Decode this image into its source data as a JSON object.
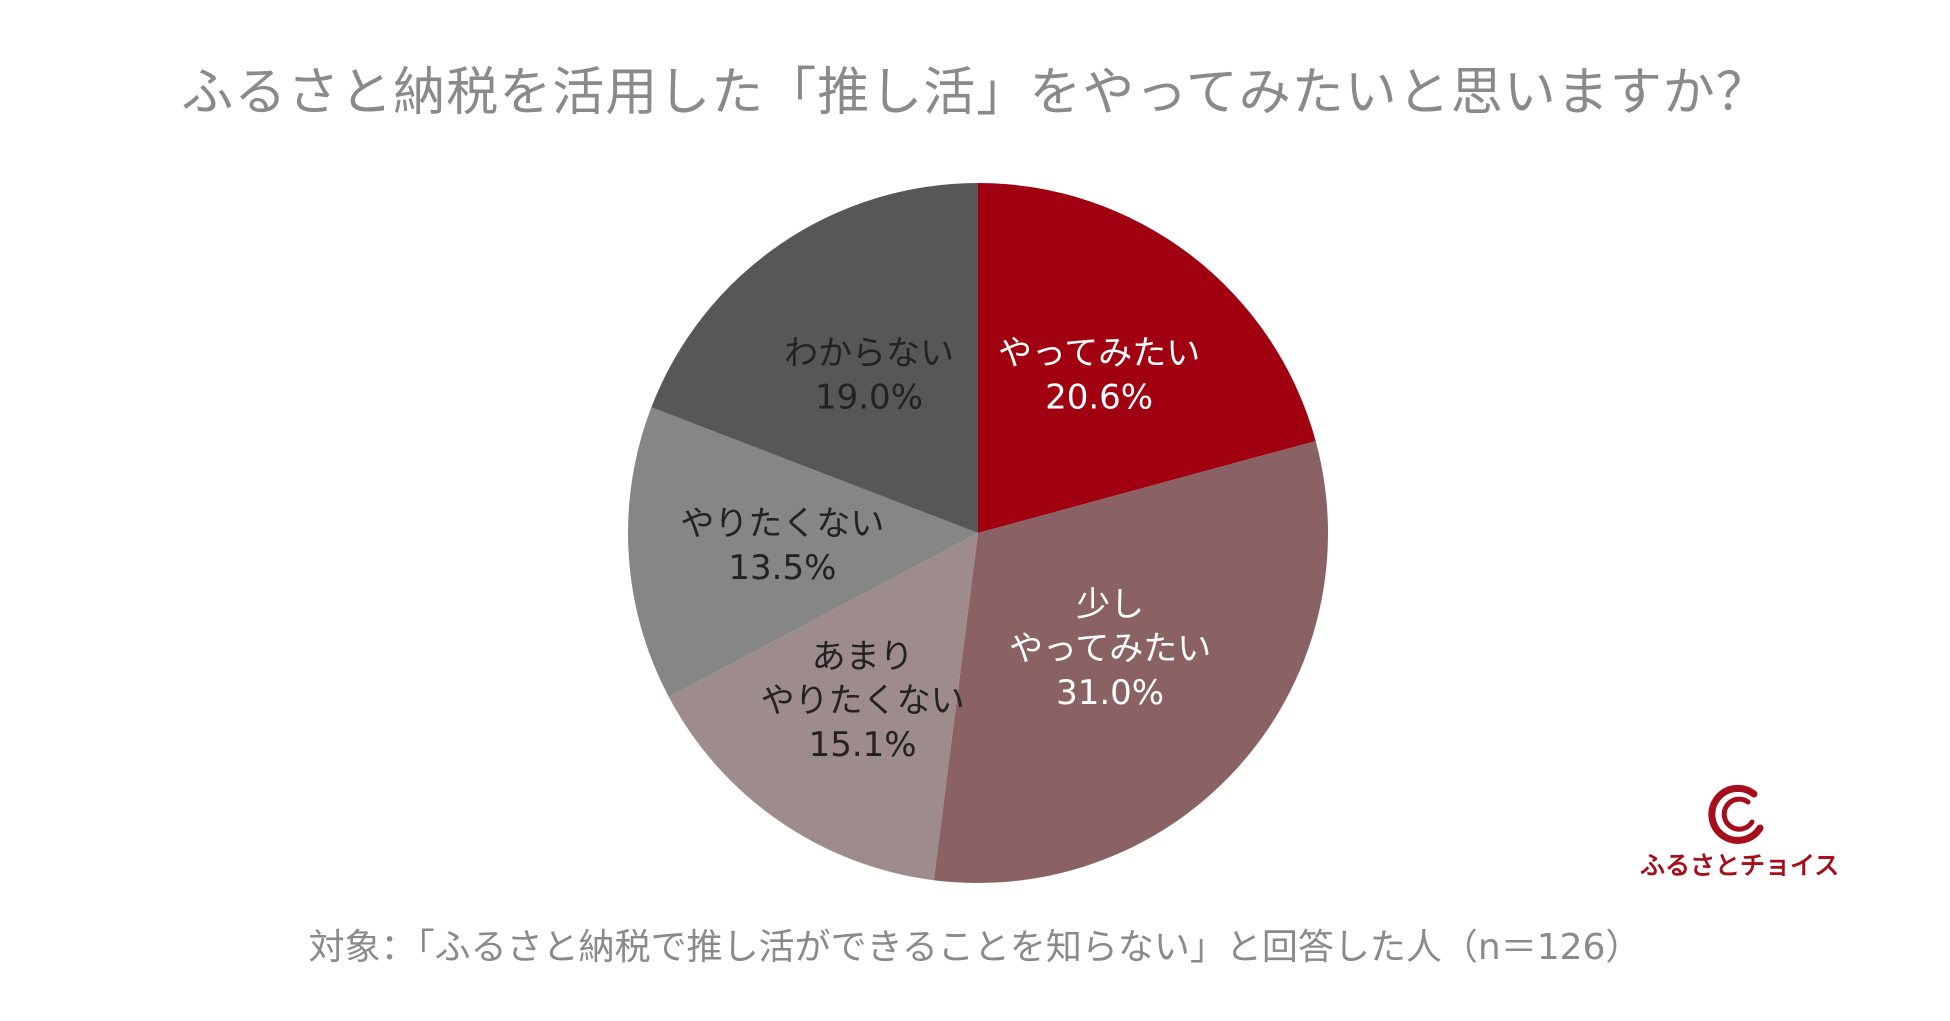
{
  "title": "ふるさと納税を活用した「推し活」をやってみたいと思いますか？",
  "note": "対象：「ふるさと納税で推し活ができることを知らない」と回答した人（n＝126）",
  "logo": {
    "text": "ふるさとチョイス",
    "icon": "furusato-choice-c-logo-icon"
  },
  "chart_data": {
    "type": "pie",
    "title": "ふるさと納税を活用した「推し活」をやってみたいと思いますか？",
    "start": "12 o'clock",
    "direction": "clockwise",
    "legend": "none (labels on slices)",
    "slices": [
      {
        "label": "やってみたい",
        "value": 20.6,
        "value_label": "20.6%",
        "color": "#a00010",
        "text_color": "#ffffff"
      },
      {
        "label": "少し\nやってみたい",
        "value": 31.0,
        "value_label": "31.0%",
        "color": "#8b6264",
        "text_color": "#ffffff"
      },
      {
        "label": "あまり\nやりたくない",
        "value": 15.1,
        "value_label": "15.1%",
        "color": "#9e8b8c",
        "text_color": "#222222"
      },
      {
        "label": "やりたくない",
        "value": 13.5,
        "value_label": "13.5%",
        "color": "#868686",
        "text_color": "#222222"
      },
      {
        "label": "わからない",
        "value": 19.0,
        "value_label": "19.0%",
        "color": "#575757",
        "text_color": "#222222"
      }
    ]
  }
}
